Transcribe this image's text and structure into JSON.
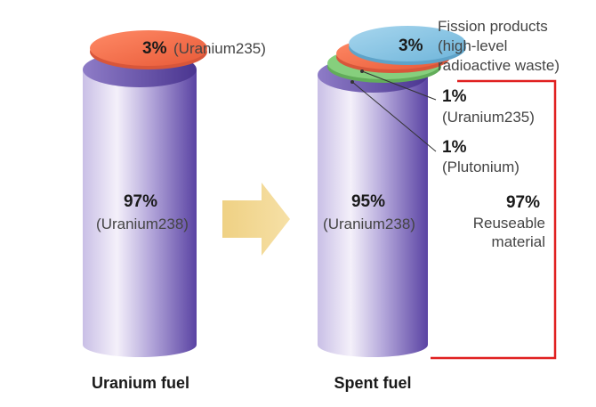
{
  "colors": {
    "cylinder_light": "#ece6f6",
    "cylinder_mid": "#a99ad2",
    "cylinder_dark": "#5a43a3",
    "uranium235_disc": "#f5704d",
    "plutonium_disc": "#7fca76",
    "fission_disc": "#84c3e1",
    "arrow": "#f3d68d",
    "bracket": "#e02020"
  },
  "uranium_fuel": {
    "caption": "Uranium fuel",
    "u238_percent": "97%",
    "u238_name": "(Uranium238)",
    "u235_percent": "3%",
    "u235_name": "(Uranium235)"
  },
  "spent_fuel": {
    "caption": "Spent fuel",
    "u238_percent": "95%",
    "u238_name": "(Uranium238)",
    "fission_percent": "3%",
    "fission_line1": "Fission products",
    "fission_line2": "(high-level",
    "fission_line3": "radioactive waste)",
    "u235_percent": "1%",
    "u235_name": "(Uranium235)",
    "plutonium_percent": "1%",
    "plutonium_name": "(Plutonium)",
    "reusable_percent": "97%",
    "reusable_line1": "Reuseable",
    "reusable_line2": "material"
  }
}
